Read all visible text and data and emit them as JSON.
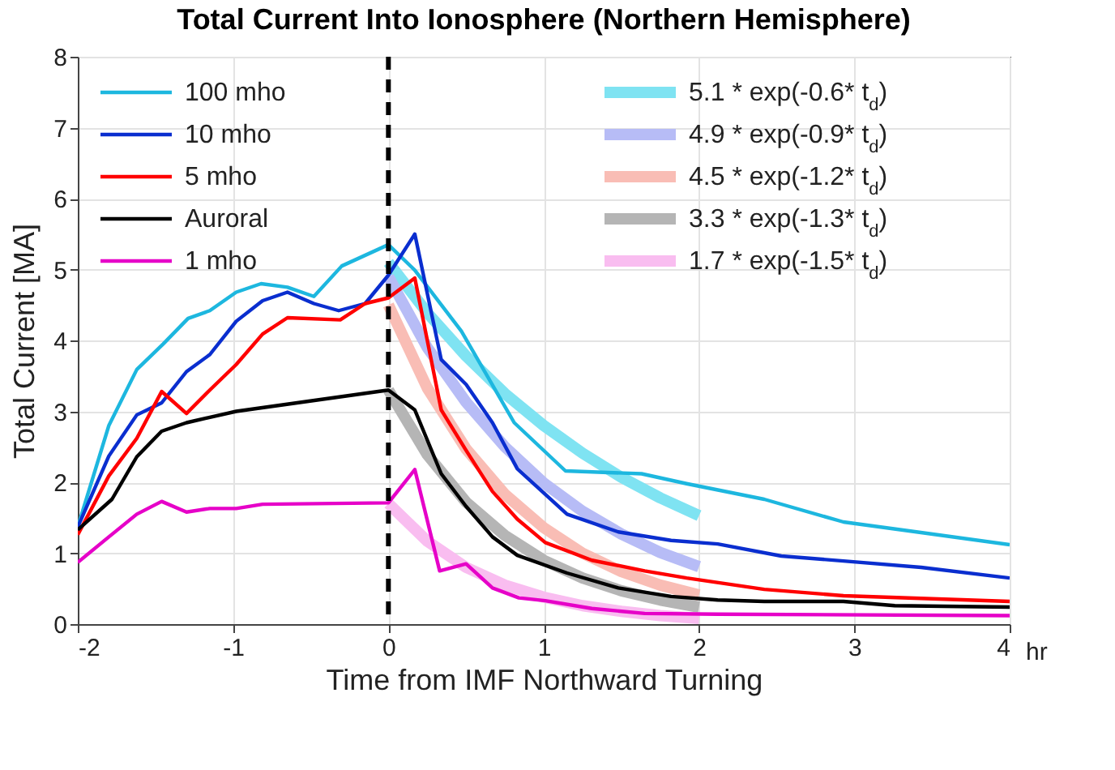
{
  "chart_data": {
    "type": "line",
    "title": "Total Current Into Ionosphere (Northern Hemisphere)",
    "xlabel": "Time from IMF Northward Turning",
    "ylabel": "Total Current [MA]",
    "annotations": [
      "hr"
    ],
    "xlim": [
      -2,
      4
    ],
    "xticks": [
      -2,
      -1,
      0,
      1,
      2,
      3,
      4
    ],
    "ylim": [
      0,
      8
    ],
    "yticks": [
      0,
      1,
      2,
      3,
      4,
      5,
      6,
      7,
      8
    ],
    "grid": true,
    "legend": "top left",
    "line_style": "solid",
    "marker": "none",
    "ref_lines": [
      {
        "axis": "x",
        "value": 0,
        "color": "#000000",
        "line_style": "dashed"
      }
    ],
    "series": [
      {
        "name": "5.1 * exp(-0.6* t$_{d}$)",
        "color": "#7fe3f2",
        "x": [
          0,
          0.25,
          0.5,
          0.75,
          1,
          1.25,
          1.5,
          1.75,
          2
        ],
        "values": [
          5.1,
          4.39,
          3.78,
          3.25,
          2.8,
          2.41,
          2.07,
          1.78,
          1.53
        ]
      },
      {
        "name": "4.9 * exp(-0.9* t$_{d}$)",
        "color": "#b7bcf6",
        "x": [
          0,
          0.25,
          0.5,
          0.75,
          1,
          1.25,
          1.5,
          1.75,
          2
        ],
        "values": [
          4.9,
          3.9,
          3.13,
          2.5,
          1.99,
          1.59,
          1.27,
          1.01,
          0.81
        ]
      },
      {
        "name": "4.5 * exp(-1.2* t$_{d}$)",
        "color": "#f9bdb5",
        "x": [
          0,
          0.25,
          0.5,
          0.75,
          1,
          1.25,
          1.5,
          1.75,
          2
        ],
        "values": [
          4.5,
          3.33,
          2.47,
          1.83,
          1.36,
          1.0,
          0.74,
          0.55,
          0.41
        ]
      },
      {
        "name": "3.3 * exp(-1.3* t$_{d}$)",
        "color": "#b5b5b5",
        "x": [
          0,
          0.25,
          0.5,
          0.75,
          1,
          1.25,
          1.5,
          1.75,
          2
        ],
        "values": [
          3.3,
          2.39,
          1.72,
          1.25,
          0.9,
          0.65,
          0.47,
          0.34,
          0.24
        ]
      },
      {
        "name": "1.7 * exp(-1.5* t$_{d}$)",
        "color": "#f9bdf0",
        "x": [
          0,
          0.25,
          0.5,
          0.75,
          1,
          1.25,
          1.5,
          1.75,
          2
        ],
        "values": [
          1.7,
          1.17,
          0.8,
          0.55,
          0.38,
          0.26,
          0.18,
          0.12,
          0.08
        ]
      },
      {
        "name": "100 mho",
        "color": "#1db7df",
        "x": [
          -2,
          -1.8,
          -1.62,
          -1.45,
          -1.29,
          -1.15,
          -0.98,
          -0.82,
          -0.65,
          -0.48,
          -0.3,
          0,
          0.17,
          0.47,
          0.81,
          1.14,
          1.63,
          1.92,
          2.42,
          2.93,
          3.4,
          4
        ],
        "values": [
          1.37,
          2.8,
          3.59,
          3.95,
          4.31,
          4.42,
          4.68,
          4.8,
          4.75,
          4.62,
          5.05,
          5.35,
          4.99,
          4.13,
          2.84,
          2.16,
          2.12,
          1.98,
          1.76,
          1.44,
          1.3,
          1.12
        ]
      },
      {
        "name": "10 mho",
        "color": "#0a2ecf",
        "x": [
          -2,
          -1.8,
          -1.62,
          -1.46,
          -1.3,
          -1.15,
          -0.98,
          -0.81,
          -0.65,
          -0.48,
          -0.32,
          -0.15,
          0,
          0.17,
          0.34,
          0.5,
          0.67,
          0.83,
          1.15,
          1.48,
          1.82,
          2.12,
          2.53,
          2.93,
          3.43,
          4
        ],
        "values": [
          1.37,
          2.37,
          2.95,
          3.12,
          3.56,
          3.8,
          4.27,
          4.56,
          4.68,
          4.52,
          4.42,
          4.52,
          4.92,
          5.5,
          3.73,
          3.38,
          2.84,
          2.19,
          1.55,
          1.3,
          1.18,
          1.13,
          0.96,
          0.89,
          0.8,
          0.65
        ]
      },
      {
        "name": "5 mho",
        "color": "#ff0000",
        "x": [
          -2,
          -1.8,
          -1.62,
          -1.46,
          -1.3,
          -1.15,
          -0.98,
          -0.81,
          -0.65,
          -0.31,
          -0.15,
          0,
          0.17,
          0.34,
          0.5,
          0.67,
          0.83,
          1.01,
          1.31,
          1.65,
          1.92,
          2.42,
          2.93,
          4
        ],
        "values": [
          1.26,
          2.09,
          2.62,
          3.28,
          2.97,
          3.3,
          3.66,
          4.09,
          4.32,
          4.29,
          4.52,
          4.6,
          4.88,
          3.02,
          2.45,
          1.87,
          1.48,
          1.15,
          0.9,
          0.75,
          0.65,
          0.49,
          0.4,
          0.32
        ]
      },
      {
        "name": "Auroral",
        "color": "#000000",
        "x": [
          -2,
          -1.78,
          -1.62,
          -1.46,
          -1.3,
          -0.98,
          0,
          0.17,
          0.34,
          0.5,
          0.67,
          0.83,
          1.15,
          1.48,
          1.82,
          2.12,
          2.42,
          2.93,
          3.26,
          4
        ],
        "values": [
          1.33,
          1.76,
          2.36,
          2.72,
          2.84,
          3.0,
          3.3,
          3.02,
          2.12,
          1.66,
          1.23,
          0.97,
          0.72,
          0.51,
          0.39,
          0.34,
          0.32,
          0.32,
          0.26,
          0.24
        ]
      },
      {
        "name": "1 mho",
        "color": "#e600c8",
        "x": [
          -2,
          -1.8,
          -1.62,
          -1.46,
          -1.3,
          -1.15,
          -0.98,
          -0.81,
          0,
          0.17,
          0.33,
          0.5,
          0.67,
          0.84,
          1.01,
          1.31,
          1.65,
          2.12,
          4
        ],
        "values": [
          0.87,
          1.23,
          1.55,
          1.73,
          1.58,
          1.63,
          1.63,
          1.69,
          1.71,
          2.18,
          0.75,
          0.85,
          0.51,
          0.37,
          0.33,
          0.22,
          0.15,
          0.14,
          0.12
        ]
      }
    ]
  }
}
